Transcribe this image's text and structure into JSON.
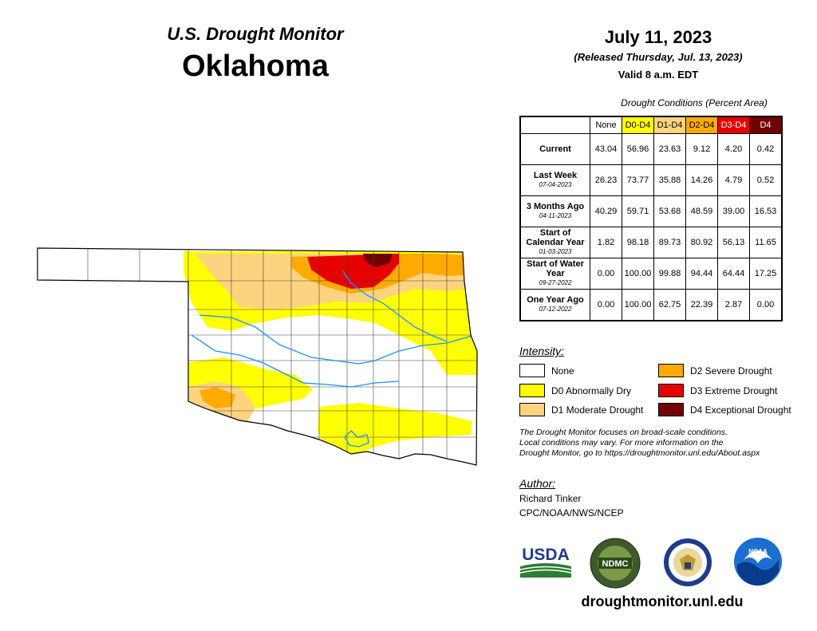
{
  "header": {
    "monitor_title": "U.S. Drought Monitor",
    "state": "Oklahoma",
    "date": "July 11, 2023",
    "released": "(Released Thursday, Jul. 13, 2023)",
    "valid": "Valid 8 a.m. EDT"
  },
  "table": {
    "caption": "Drought Conditions (Percent Area)",
    "columns": [
      {
        "label": "None",
        "color": "#ffffff"
      },
      {
        "label": "D0-D4",
        "color": "#ffff00"
      },
      {
        "label": "D1-D4",
        "color": "#fcd37f"
      },
      {
        "label": "D2-D4",
        "color": "#ffaa00"
      },
      {
        "label": "D3-D4",
        "color": "#e60000"
      },
      {
        "label": "D4",
        "color": "#730000"
      }
    ],
    "rows": [
      {
        "label": "Current",
        "sub": "",
        "values": [
          "43.04",
          "56.96",
          "23.63",
          "9.12",
          "4.20",
          "0.42"
        ]
      },
      {
        "label": "Last Week",
        "sub": "07-04-2023",
        "values": [
          "26.23",
          "73.77",
          "35.88",
          "14.26",
          "4.79",
          "0.52"
        ]
      },
      {
        "label": "3 Months Ago",
        "sub": "04-11-2023",
        "values": [
          "40.29",
          "59.71",
          "53.68",
          "48.59",
          "39.00",
          "16.53"
        ]
      },
      {
        "label": "Start of Calendar Year",
        "sub": "01-03-2023",
        "values": [
          "1.82",
          "98.18",
          "89.73",
          "80.92",
          "56.13",
          "11.65"
        ]
      },
      {
        "label": "Start of Water Year",
        "sub": "09-27-2022",
        "values": [
          "0.00",
          "100.00",
          "99.88",
          "94.44",
          "64.44",
          "17.25"
        ]
      },
      {
        "label": "One Year Ago",
        "sub": "07-12-2022",
        "values": [
          "0.00",
          "100.00",
          "62.75",
          "22.39",
          "2.87",
          "0.00"
        ]
      }
    ]
  },
  "legend": {
    "title": "Intensity:",
    "items": [
      {
        "label": "None",
        "color": "#ffffff"
      },
      {
        "label": "D0 Abnormally Dry",
        "color": "#ffff00"
      },
      {
        "label": "D1 Moderate Drought",
        "color": "#fcd37f"
      },
      {
        "label": "D2 Severe Drought",
        "color": "#ffaa00"
      },
      {
        "label": "D3 Extreme Drought",
        "color": "#e60000"
      },
      {
        "label": "D4 Exceptional Drought",
        "color": "#730000"
      }
    ]
  },
  "disclaimer": {
    "line1": "The Drought Monitor focuses on broad-scale conditions.",
    "line2": "Local conditions may vary. For more information on the",
    "line3": "Drought Monitor, go to https://droughtmonitor.unl.edu/About.aspx"
  },
  "author": {
    "title": "Author:",
    "name": "Richard Tinker",
    "org": "CPC/NOAA/NWS/NCEP"
  },
  "logos": {
    "usda": "USDA",
    "ndmc": "NDMC",
    "noaa": "NOAA"
  },
  "website": "droughtmonitor.unl.edu"
}
